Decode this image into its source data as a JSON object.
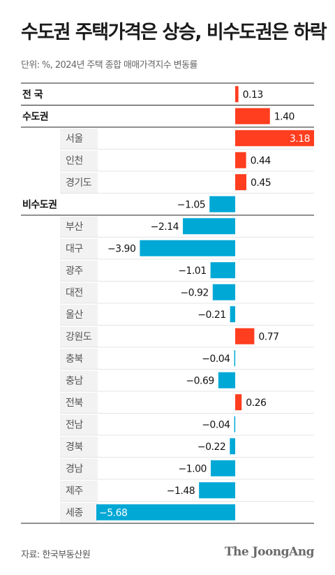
{
  "header": {
    "title": "수도권 주택가격은 상승, 비수도권은 하락",
    "subtitle": "단위: %, 2024년 주택 종합 매매가격지수 변동률"
  },
  "footer": {
    "source": "자료: 한국부동산원",
    "brand": "The JoongAng"
  },
  "colors": {
    "positive": "#ff3d1f",
    "negative": "#00a8d6",
    "group_label_bg": "#ffffff",
    "sub_label_bg": "#f2f2f2"
  },
  "chart_data": {
    "type": "bar",
    "orientation": "horizontal",
    "unit": "%",
    "categories": [
      "전 국",
      "수도권",
      "서울",
      "인천",
      "경기도",
      "비수도권",
      "부산",
      "대구",
      "광주",
      "대전",
      "울산",
      "강원도",
      "충북",
      "충남",
      "전북",
      "전남",
      "경북",
      "경남",
      "제주",
      "세종"
    ],
    "levels": [
      "group",
      "group",
      "sub",
      "sub",
      "sub",
      "group",
      "sub",
      "sub",
      "sub",
      "sub",
      "sub",
      "sub",
      "sub",
      "sub",
      "sub",
      "sub",
      "sub",
      "sub",
      "sub",
      "sub"
    ],
    "values": [
      0.13,
      1.4,
      3.18,
      0.44,
      0.45,
      -1.05,
      -2.14,
      -3.9,
      -1.01,
      -0.92,
      -0.21,
      0.77,
      -0.04,
      -0.69,
      0.26,
      -0.04,
      -0.22,
      -1.0,
      -1.48,
      -5.68
    ],
    "value_labels": [
      "0.13",
      "1.40",
      "3.18",
      "0.44",
      "0.45",
      "−1.05",
      "−2.14",
      "−3.90",
      "−1.01",
      "−0.92",
      "−0.21",
      "0.77",
      "−0.04",
      "−0.69",
      "0.26",
      "−0.04",
      "−0.22",
      "−1.00",
      "−1.48",
      "−5.68"
    ],
    "xlim": [
      -5.68,
      3.18
    ]
  }
}
